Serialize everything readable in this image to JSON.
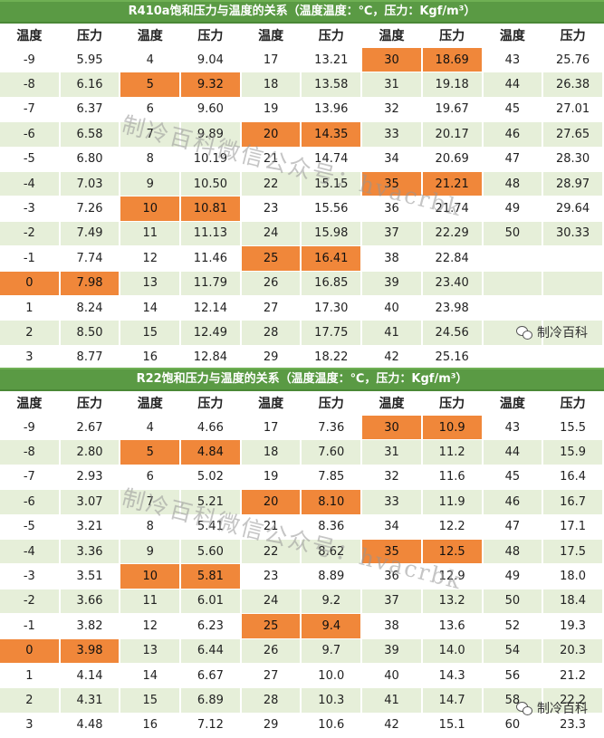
{
  "tables": [
    {
      "title": "R410a饱和压力与温度的关系（温度温度：℃，压力：Kgf/m³）",
      "headers": [
        "温度",
        "压力",
        "温度",
        "压力",
        "温度",
        "压力",
        "温度",
        "压力",
        "温度",
        "压力"
      ],
      "rows": [
        [
          "-9",
          "5.95",
          "4",
          "9.04",
          "17",
          "13.21",
          "30",
          "18.69",
          "43",
          "25.76"
        ],
        [
          "-8",
          "6.16",
          "5",
          "9.32",
          "18",
          "13.58",
          "31",
          "19.18",
          "44",
          "26.38"
        ],
        [
          "-7",
          "6.37",
          "6",
          "9.60",
          "19",
          "13.96",
          "32",
          "19.67",
          "45",
          "27.01"
        ],
        [
          "-6",
          "6.58",
          "7",
          "9.89",
          "20",
          "14.35",
          "33",
          "20.17",
          "46",
          "27.65"
        ],
        [
          "-5",
          "6.80",
          "8",
          "10.19",
          "21",
          "14.74",
          "34",
          "20.69",
          "47",
          "28.30"
        ],
        [
          "-4",
          "7.03",
          "9",
          "10.50",
          "22",
          "15.15",
          "35",
          "21.21",
          "48",
          "28.97"
        ],
        [
          "-3",
          "7.26",
          "10",
          "10.81",
          "23",
          "15.56",
          "36",
          "21.74",
          "49",
          "29.64"
        ],
        [
          "-2",
          "7.49",
          "11",
          "11.13",
          "24",
          "15.98",
          "37",
          "22.29",
          "50",
          "30.33"
        ],
        [
          "-1",
          "7.74",
          "12",
          "11.46",
          "25",
          "16.41",
          "38",
          "22.84",
          "",
          ""
        ],
        [
          "0",
          "7.98",
          "13",
          "11.79",
          "26",
          "16.85",
          "39",
          "23.40",
          "",
          ""
        ],
        [
          "1",
          "8.24",
          "14",
          "12.14",
          "27",
          "17.30",
          "40",
          "23.98",
          "",
          ""
        ],
        [
          "2",
          "8.50",
          "15",
          "12.49",
          "28",
          "17.75",
          "41",
          "24.56",
          "",
          ""
        ],
        [
          "3",
          "8.77",
          "16",
          "12.84",
          "29",
          "18.22",
          "42",
          "25.16",
          "",
          ""
        ]
      ],
      "highlights": [
        [
          0,
          6
        ],
        [
          0,
          7
        ],
        [
          1,
          2
        ],
        [
          1,
          3
        ],
        [
          3,
          4
        ],
        [
          3,
          5
        ],
        [
          5,
          6
        ],
        [
          5,
          7
        ],
        [
          6,
          2
        ],
        [
          6,
          3
        ],
        [
          8,
          4
        ],
        [
          8,
          5
        ],
        [
          9,
          0
        ],
        [
          9,
          1
        ]
      ]
    },
    {
      "title": "R22饱和压力与温度的关系（温度温度：℃，压力：Kgf/m³）",
      "headers": [
        "温度",
        "压力",
        "温度",
        "压力",
        "温度",
        "压力",
        "温度",
        "压力",
        "温度",
        "压力"
      ],
      "rows": [
        [
          "-9",
          "2.67",
          "4",
          "4.66",
          "17",
          "7.36",
          "30",
          "10.9",
          "43",
          "15.5"
        ],
        [
          "-8",
          "2.80",
          "5",
          "4.84",
          "18",
          "7.60",
          "31",
          "11.2",
          "44",
          "15.9"
        ],
        [
          "-7",
          "2.93",
          "6",
          "5.02",
          "19",
          "7.85",
          "32",
          "11.6",
          "45",
          "16.4"
        ],
        [
          "-6",
          "3.07",
          "7",
          "5.21",
          "20",
          "8.10",
          "33",
          "11.9",
          "46",
          "16.7"
        ],
        [
          "-5",
          "3.21",
          "8",
          "5.41",
          "21",
          "8.36",
          "34",
          "12.2",
          "47",
          "17.1"
        ],
        [
          "-4",
          "3.36",
          "9",
          "5.60",
          "22",
          "8.62",
          "35",
          "12.5",
          "48",
          "17.5"
        ],
        [
          "-3",
          "3.51",
          "10",
          "5.81",
          "23",
          "8.89",
          "36",
          "12.9",
          "49",
          "18.0"
        ],
        [
          "-2",
          "3.66",
          "11",
          "6.01",
          "24",
          "9.2",
          "37",
          "13.2",
          "50",
          "18.4"
        ],
        [
          "-1",
          "3.82",
          "12",
          "6.23",
          "25",
          "9.4",
          "38",
          "13.6",
          "52",
          "19.3"
        ],
        [
          "0",
          "3.98",
          "13",
          "6.44",
          "26",
          "9.7",
          "39",
          "14.0",
          "54",
          "20.3"
        ],
        [
          "1",
          "4.14",
          "14",
          "6.67",
          "27",
          "10.0",
          "40",
          "14.3",
          "56",
          "21.2"
        ],
        [
          "2",
          "4.31",
          "15",
          "6.89",
          "28",
          "10.3",
          "41",
          "14.7",
          "58",
          "22.2"
        ],
        [
          "3",
          "4.48",
          "16",
          "7.12",
          "29",
          "10.6",
          "42",
          "15.1",
          "60",
          "23.3"
        ]
      ],
      "highlights": [
        [
          0,
          6
        ],
        [
          0,
          7
        ],
        [
          1,
          2
        ],
        [
          1,
          3
        ],
        [
          3,
          4
        ],
        [
          3,
          5
        ],
        [
          5,
          6
        ],
        [
          5,
          7
        ],
        [
          6,
          2
        ],
        [
          6,
          3
        ],
        [
          8,
          4
        ],
        [
          8,
          5
        ],
        [
          9,
          0
        ],
        [
          9,
          1
        ]
      ]
    }
  ],
  "watermark": "制冷百科微信公众号：hvacrbk",
  "brand": "制冷百科",
  "brand_icon": "wechat-icon",
  "colors": {
    "title_bg": "#5a9a44",
    "stripe": "#e6efd9",
    "highlight": "#f0873a"
  }
}
